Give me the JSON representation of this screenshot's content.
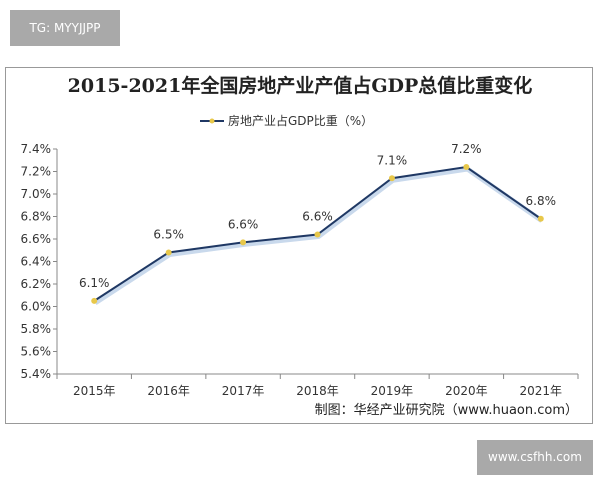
{
  "watermarks": {
    "top_left": "TG: MYYJJPP",
    "bottom_right": "www.csfhh.com"
  },
  "chart_data": {
    "type": "line",
    "title": "2015-2021年全国房地产业产值占GDP总值比重变化",
    "categories": [
      "2015年",
      "2016年",
      "2017年",
      "2018年",
      "2019年",
      "2020年",
      "2021年"
    ],
    "series": [
      {
        "name": "房地产业占GDP比重（%）",
        "values": [
          6.05,
          6.48,
          6.57,
          6.64,
          7.14,
          7.24,
          6.78
        ],
        "labels": [
          "6.1%",
          "6.5%",
          "6.6%",
          "6.6%",
          "7.1%",
          "7.2%",
          "6.8%"
        ],
        "color": "#1f3864",
        "marker_color": "#e8c84a"
      }
    ],
    "ylim": [
      5.4,
      7.4
    ],
    "yticks": [
      "5.4%",
      "5.6%",
      "5.8%",
      "6.0%",
      "6.2%",
      "6.4%",
      "6.6%",
      "6.8%",
      "7.0%",
      "7.2%",
      "7.4%"
    ],
    "grid": false,
    "legend": "top-center",
    "source": "制图：华经产业研究院（www.huaon.com）"
  }
}
